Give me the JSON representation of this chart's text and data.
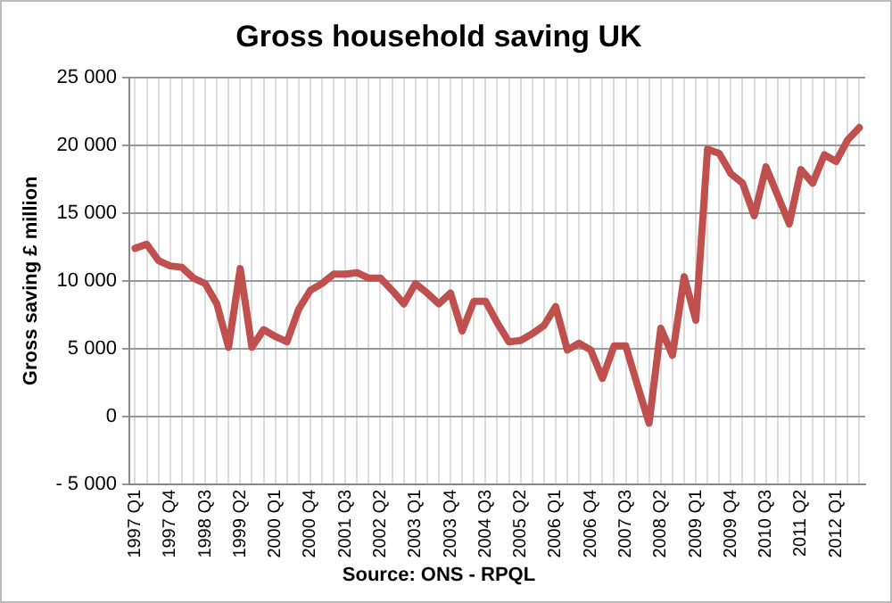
{
  "chart_data": {
    "type": "line",
    "title": "Gross household saving UK",
    "ylabel": "Gross saving £ million",
    "categories": [
      "1997 Q1",
      null,
      null,
      "1997 Q4",
      null,
      null,
      "1998 Q3",
      null,
      null,
      "1999 Q2",
      null,
      null,
      "2000 Q1",
      null,
      null,
      "2000 Q4",
      null,
      null,
      "2001 Q3",
      null,
      null,
      "2002 Q2",
      null,
      null,
      "2003 Q1",
      null,
      null,
      "2003 Q4",
      null,
      null,
      "2004 Q3",
      null,
      null,
      "2005 Q2",
      null,
      null,
      "2006 Q1",
      null,
      null,
      "2006 Q4",
      null,
      null,
      "2007 Q3",
      null,
      null,
      "2008 Q2",
      null,
      null,
      "2009 Q1",
      null,
      null,
      "2009 Q4",
      null,
      null,
      "2010 Q3",
      null,
      null,
      "2011 Q2",
      null,
      null,
      "2012 Q1",
      null,
      null
    ],
    "series": [
      {
        "color": "#c0504d",
        "values": [
          12400,
          12700,
          11500,
          11100,
          11000,
          10200,
          9800,
          8300,
          5100,
          10900,
          5100,
          6400,
          5900,
          5500,
          7900,
          9300,
          9800,
          10500,
          10500,
          10600,
          10200,
          10200,
          9300,
          8300,
          9800,
          9100,
          8300,
          9100,
          6300,
          8500,
          8500,
          6900,
          5500,
          5600,
          6100,
          6700,
          8100,
          4900,
          5400,
          4900,
          2800,
          5200,
          5200,
          2300,
          -500,
          6500,
          4500,
          10300,
          7100,
          19700,
          19400,
          17900,
          17200,
          14800,
          18400,
          16300,
          14200,
          18200,
          17200,
          19300,
          18800,
          20400,
          21300
        ]
      }
    ],
    "ylim": [
      -5000,
      25000
    ],
    "yticks": [
      {
        "value": -5000,
        "label": "- 5 000"
      },
      {
        "value": 0,
        "label": "0"
      },
      {
        "value": 5000,
        "label": "5 000"
      },
      {
        "value": 10000,
        "label": "10 000"
      },
      {
        "value": 15000,
        "label": "15 000"
      },
      {
        "value": 20000,
        "label": "20 000"
      },
      {
        "value": 25000,
        "label": "25 000"
      }
    ],
    "grid": true,
    "legend": false,
    "marker": "none",
    "line_style": "solid",
    "annotations": [
      "Source: ONS - RPQL"
    ]
  }
}
